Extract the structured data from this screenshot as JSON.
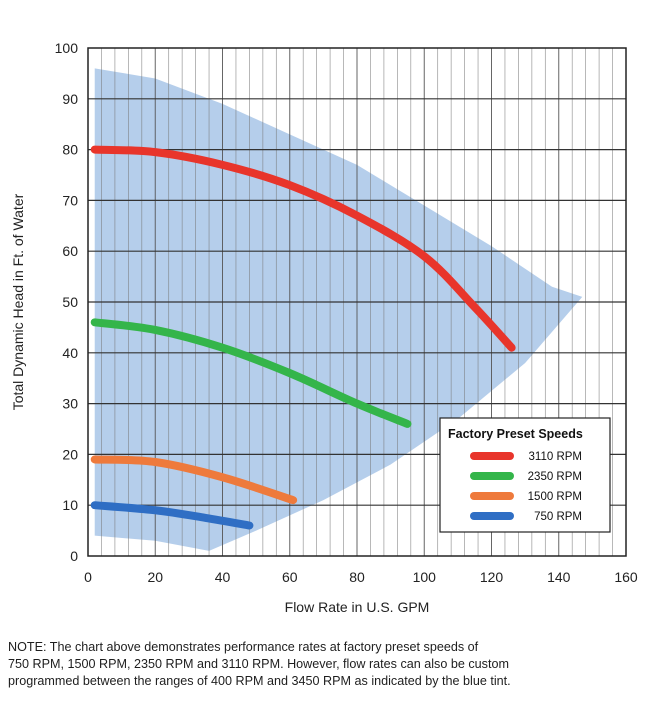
{
  "chart_data": {
    "type": "line",
    "title": "",
    "xlabel": "Flow Rate in U.S. GPM",
    "ylabel": "Total Dynamic Head in Ft. of Water",
    "xlim": [
      0,
      160
    ],
    "ylim": [
      0,
      100
    ],
    "x_ticks": [
      "0",
      "20",
      "40",
      "60",
      "80",
      "100",
      "120",
      "140",
      "160"
    ],
    "y_ticks": [
      "0",
      "10",
      "20",
      "30",
      "40",
      "50",
      "60",
      "70",
      "80",
      "90",
      "100"
    ],
    "grid": true,
    "legend": {
      "title": "Factory Preset Speeds",
      "placement": "bottom-right"
    },
    "band": {
      "description_color": "#a8c6e8",
      "outline": [
        [
          2,
          96
        ],
        [
          20,
          94
        ],
        [
          40,
          89
        ],
        [
          60,
          83
        ],
        [
          80,
          77
        ],
        [
          100,
          69
        ],
        [
          120,
          61
        ],
        [
          138,
          53
        ],
        [
          147,
          51
        ],
        [
          130,
          38
        ],
        [
          110,
          27
        ],
        [
          90,
          18
        ],
        [
          70,
          11
        ],
        [
          50,
          5
        ],
        [
          36,
          1
        ],
        [
          20,
          3
        ],
        [
          2,
          4
        ]
      ]
    },
    "series": [
      {
        "name": "3110 RPM",
        "color": "#e8352b",
        "x": [
          2,
          20,
          40,
          60,
          80,
          100,
          115,
          126
        ],
        "y": [
          80,
          79.5,
          77,
          73,
          67,
          59,
          49,
          41
        ]
      },
      {
        "name": "2350 RPM",
        "color": "#34b54a",
        "x": [
          2,
          20,
          40,
          60,
          80,
          95
        ],
        "y": [
          46,
          44.5,
          41,
          36,
          30,
          26
        ]
      },
      {
        "name": "1500 RPM",
        "color": "#ee7a3c",
        "x": [
          2,
          20,
          40,
          61
        ],
        "y": [
          19,
          18.5,
          15.5,
          11
        ]
      },
      {
        "name": "750 RPM",
        "color": "#2f6ec4",
        "x": [
          2,
          20,
          35,
          48
        ],
        "y": [
          10,
          9,
          7.5,
          6
        ]
      }
    ]
  },
  "note": {
    "lines": [
      "NOTE: The chart above demonstrates performance rates at factory preset speeds of",
      "750 RPM, 1500 RPM, 2350 RPM and 3110 RPM. However, flow rates can also be custom",
      "programmed between the ranges of 400 RPM and 3450 RPM as indicated by the blue tint."
    ]
  }
}
